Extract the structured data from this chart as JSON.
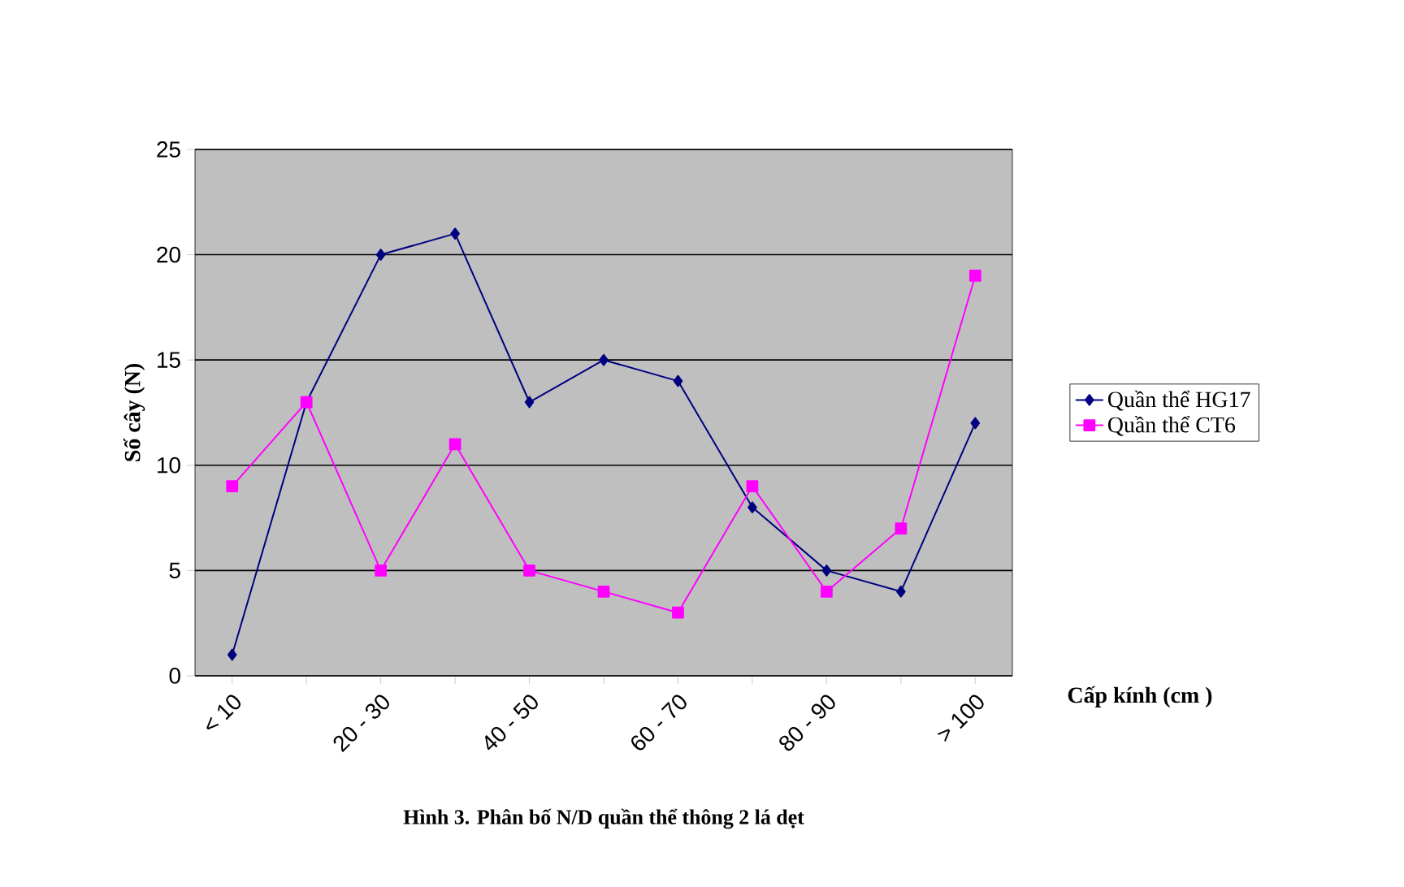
{
  "chart_data": {
    "type": "line",
    "title": "Hình 3. Phân bố N/D quần thể thông 2 lá dẹt",
    "xlabel": "Cấp kính (cm )",
    "ylabel": "Số cây (N)",
    "categories": [
      "< 10",
      null,
      "20 - 30",
      null,
      "40 - 50",
      null,
      "60 - 70",
      null,
      "80 - 90",
      null,
      "> 100"
    ],
    "series": [
      {
        "name": "Quần thể HG17",
        "color": "#000080",
        "marker": "diamond",
        "values": [
          1,
          13,
          20,
          21,
          13,
          15,
          14,
          8,
          5,
          4,
          12
        ]
      },
      {
        "name": "Quần thể CT6",
        "color": "#ff00ff",
        "marker": "square",
        "values": [
          9,
          13,
          5,
          11,
          5,
          4,
          3,
          9,
          4,
          7,
          19
        ]
      }
    ],
    "ylim": [
      0,
      25
    ],
    "yticks": [
      0,
      5,
      10,
      15,
      20,
      25
    ],
    "grid": "y",
    "legend": "right"
  }
}
